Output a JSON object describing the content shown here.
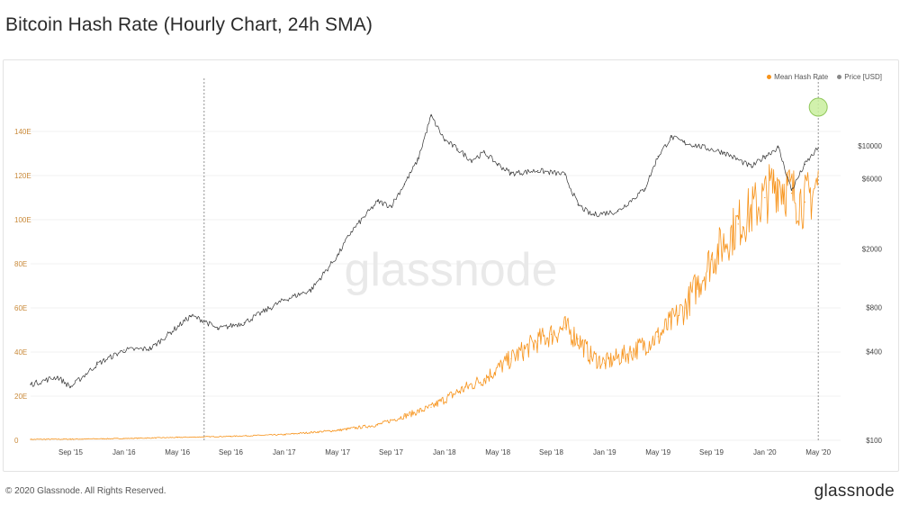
{
  "title": "Bitcoin Hash Rate (Hourly Chart, 24h SMA)",
  "footer": {
    "copyright": "© 2020 Glassnode. All Rights Reserved.",
    "brand": "glassnode"
  },
  "watermark": "glassnode",
  "colors": {
    "hash_rate": "#f7931a",
    "price": "#333333",
    "price_dot": "#888888",
    "left_axis": "#c98a3a",
    "highlight_fill": "#c9ef9e",
    "highlight_stroke": "#8fc75a"
  },
  "chart_data": {
    "type": "line",
    "title": "Bitcoin Hash Rate (Hourly Chart, 24h SMA)",
    "x_ticks": [
      "Sep '15",
      "Jan '16",
      "May '16",
      "Sep '16",
      "Jan '17",
      "May '17",
      "Sep '17",
      "Jan '18",
      "May '18",
      "Sep '18",
      "Jan '19",
      "May '19",
      "Sep '19",
      "Jan '20",
      "May '20"
    ],
    "xlim": [
      "2015-06",
      "2020-06"
    ],
    "y_left": {
      "ticks": [
        "0",
        "20E",
        "40E",
        "60E",
        "80E",
        "100E",
        "120E",
        "140E"
      ],
      "values": [
        0,
        20,
        40,
        60,
        80,
        100,
        120,
        140
      ],
      "ylim": [
        0,
        160
      ],
      "scale": "linear"
    },
    "y_right": {
      "ticks": [
        "$100",
        "$400",
        "$800",
        "$2000",
        "$6000",
        "$10000"
      ],
      "values": [
        100,
        400,
        800,
        2000,
        6000,
        10000
      ],
      "ylim": [
        100,
        25000
      ],
      "scale": "log"
    },
    "legend": {
      "placement": "top-right",
      "entries": [
        "Mean Hash Rate",
        "Price [USD]"
      ]
    },
    "annotations": {
      "vertical_dashed_lines": [
        "2016-07",
        "2020-05"
      ],
      "highlight_circle_at": "2020-05"
    },
    "series": [
      {
        "name": "Mean Hash Rate",
        "axis": "left",
        "x": [
          "2015-06",
          "2015-09",
          "2016-01",
          "2016-05",
          "2016-09",
          "2017-01",
          "2017-05",
          "2017-08",
          "2017-10",
          "2017-12",
          "2018-02",
          "2018-04",
          "2018-06",
          "2018-08",
          "2018-09",
          "2018-10",
          "2018-11",
          "2018-12",
          "2019-01",
          "2019-03",
          "2019-05",
          "2019-07",
          "2019-09",
          "2019-11",
          "2020-01",
          "2020-02",
          "2020-03",
          "2020-04",
          "2020-05"
        ],
        "values": [
          0.4,
          0.5,
          0.8,
          1.3,
          1.8,
          2.6,
          4.5,
          7,
          11,
          15,
          22,
          28,
          37,
          45,
          48,
          51,
          46,
          38,
          35,
          40,
          47,
          60,
          82,
          98,
          110,
          118,
          112,
          108,
          116
        ]
      },
      {
        "name": "Price [USD]",
        "axis": "right",
        "x": [
          "2015-06",
          "2015-08",
          "2015-09",
          "2015-11",
          "2016-01",
          "2016-03",
          "2016-06",
          "2016-07",
          "2016-08",
          "2016-10",
          "2017-01",
          "2017-03",
          "2017-05",
          "2017-06",
          "2017-08",
          "2017-09",
          "2017-10",
          "2017-11",
          "2017-12",
          "2018-01",
          "2018-02",
          "2018-03",
          "2018-04",
          "2018-05",
          "2018-06",
          "2018-08",
          "2018-10",
          "2018-11",
          "2018-12",
          "2019-02",
          "2019-04",
          "2019-05",
          "2019-06",
          "2019-07",
          "2019-08",
          "2019-10",
          "2019-12",
          "2020-01",
          "2020-02",
          "2020-03",
          "2020-04",
          "2020-05"
        ],
        "values": [
          240,
          270,
          230,
          330,
          410,
          420,
          700,
          650,
          570,
          630,
          900,
          1050,
          1800,
          2600,
          4200,
          3900,
          5500,
          8000,
          16000,
          11000,
          9500,
          8000,
          9000,
          7500,
          6500,
          6800,
          6400,
          4000,
          3400,
          3600,
          5100,
          8500,
          11500,
          10500,
          10000,
          9000,
          7200,
          8500,
          9800,
          5000,
          7500,
          9700
        ]
      }
    ]
  }
}
